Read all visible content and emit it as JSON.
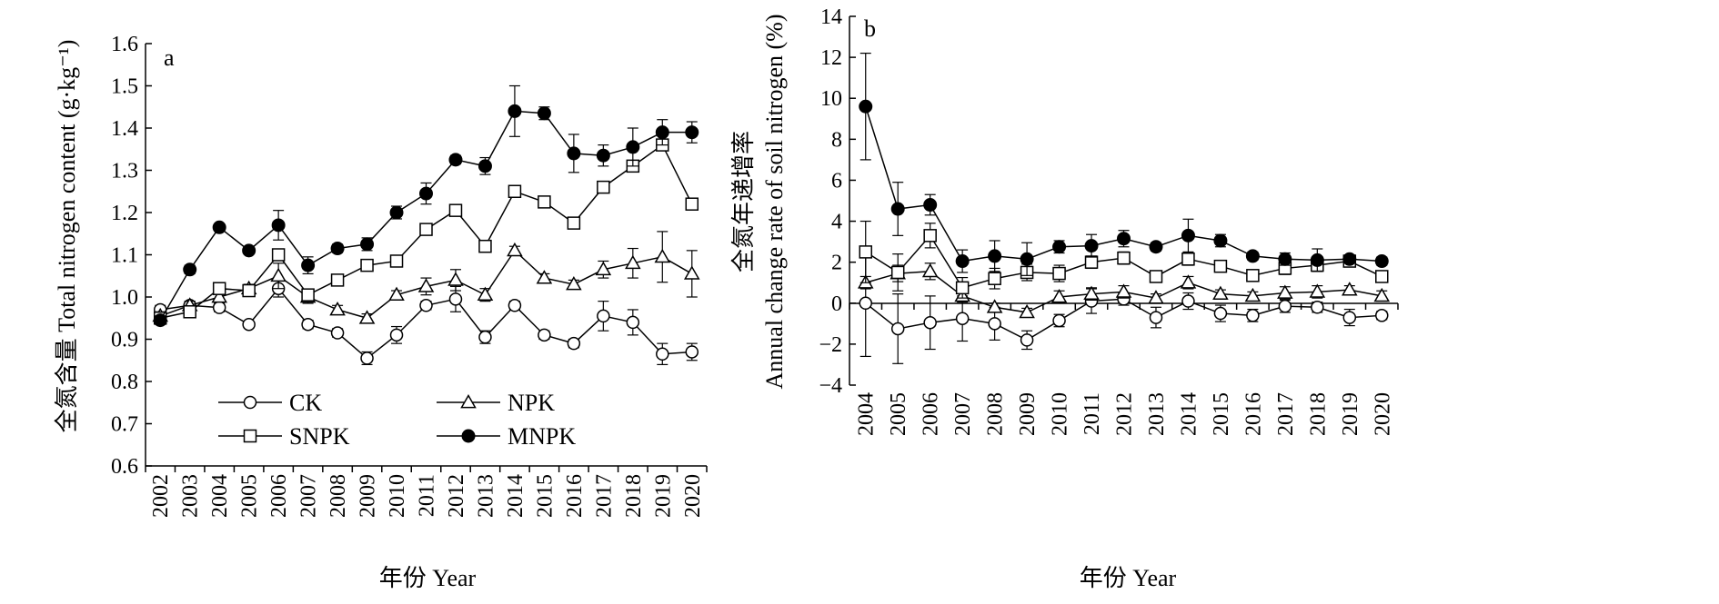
{
  "chart_data": [
    {
      "type": "line",
      "panel_label": "a",
      "title": "",
      "xlabel": "年份 Year",
      "ylabel": "全氮含量 Total nitrogen content (g·kg⁻¹)",
      "x": [
        "2002",
        "2003",
        "2004",
        "2005",
        "2006",
        "2007",
        "2008",
        "2009",
        "2010",
        "2011",
        "2012",
        "2013",
        "2014",
        "2015",
        "2016",
        "2017",
        "2018",
        "2019",
        "2020"
      ],
      "ylim": [
        0.6,
        1.6
      ],
      "yticks": [
        "0.6",
        "0.7",
        "0.8",
        "0.9",
        "1.0",
        "1.1",
        "1.2",
        "1.3",
        "1.4",
        "1.5",
        "1.6"
      ],
      "grid": false,
      "legend": {
        "placement": "bottom-left",
        "entries": [
          "CK",
          "NPK",
          "SNPK",
          "MNPK"
        ]
      },
      "series": [
        {
          "name": "CK",
          "marker": "open-circle",
          "values": [
            0.97,
            0.98,
            0.975,
            0.935,
            1.02,
            0.935,
            0.915,
            0.855,
            0.91,
            0.98,
            0.995,
            0.905,
            0.98,
            0.91,
            0.89,
            0.955,
            0.94,
            0.865,
            0.87
          ],
          "errors": [
            0.01,
            0.01,
            0.01,
            0.005,
            0.02,
            0.01,
            0.01,
            0.015,
            0.02,
            0.01,
            0.03,
            0.015,
            0.01,
            0.01,
            0.01,
            0.035,
            0.03,
            0.025,
            0.02
          ]
        },
        {
          "name": "NPK",
          "marker": "open-triangle",
          "values": [
            0.955,
            0.98,
            1.0,
            1.02,
            1.05,
            1.0,
            0.97,
            0.95,
            1.005,
            1.025,
            1.04,
            1.005,
            1.11,
            1.045,
            1.03,
            1.065,
            1.08,
            1.095,
            1.055
          ],
          "errors": [
            0.01,
            0.01,
            0.01,
            0.01,
            0.03,
            0.015,
            0.01,
            0.01,
            0.01,
            0.02,
            0.025,
            0.015,
            0.01,
            0.01,
            0.01,
            0.02,
            0.035,
            0.06,
            0.055
          ]
        },
        {
          "name": "SNPK",
          "marker": "open-square",
          "values": [
            0.95,
            0.965,
            1.02,
            1.015,
            1.1,
            1.005,
            1.04,
            1.075,
            1.085,
            1.16,
            1.205,
            1.12,
            1.25,
            1.225,
            1.175,
            1.26,
            1.31,
            1.36,
            1.22
          ]
        },
        {
          "name": "MNPK",
          "marker": "filled-circle",
          "values": [
            0.945,
            1.065,
            1.165,
            1.11,
            1.17,
            1.075,
            1.115,
            1.125,
            1.2,
            1.245,
            1.325,
            1.31,
            1.44,
            1.435,
            1.34,
            1.335,
            1.355,
            1.39,
            1.39
          ],
          "errors": [
            0.01,
            0.01,
            0.005,
            0.005,
            0.035,
            0.02,
            0.01,
            0.015,
            0.015,
            0.025,
            0.01,
            0.02,
            0.06,
            0.015,
            0.045,
            0.025,
            0.045,
            0.03,
            0.025
          ]
        }
      ]
    },
    {
      "type": "line",
      "panel_label": "b",
      "title": "",
      "xlabel": "年份 Year",
      "ylabel_line1": "全氮年递增率",
      "ylabel_line2": "Annual change rate of soil nitrogen (%)",
      "x": [
        "2004",
        "2005",
        "2006",
        "2007",
        "2008",
        "2009",
        "2010",
        "2011",
        "2012",
        "2013",
        "2014",
        "2015",
        "2016",
        "2017",
        "2018",
        "2019",
        "2020"
      ],
      "ylim": [
        -4,
        14
      ],
      "yticks": [
        "−4",
        "−2",
        "0",
        "2",
        "4",
        "6",
        "8",
        "10",
        "12",
        "14"
      ],
      "grid": false,
      "series": [
        {
          "name": "CK",
          "marker": "open-circle",
          "values": [
            0.0,
            -1.25,
            -0.95,
            -0.75,
            -1.0,
            -1.8,
            -0.85,
            0.1,
            0.2,
            -0.7,
            0.1,
            -0.5,
            -0.6,
            -0.15,
            -0.2,
            -0.7,
            -0.6
          ],
          "errors": [
            2.6,
            1.7,
            1.3,
            1.1,
            0.8,
            0.45,
            0.3,
            0.6,
            0.3,
            0.5,
            0.4,
            0.4,
            0.3,
            0.3,
            0.25,
            0.4,
            0.2
          ]
        },
        {
          "name": "NPK",
          "marker": "open-triangle",
          "values": [
            1.0,
            1.45,
            1.55,
            0.35,
            -0.2,
            -0.45,
            0.3,
            0.45,
            0.55,
            0.25,
            1.0,
            0.45,
            0.35,
            0.5,
            0.55,
            0.65,
            0.35
          ],
          "errors": [
            0.3,
            0.4,
            0.4,
            0.3,
            0.2,
            0.2,
            0.3,
            0.3,
            0.3,
            0.2,
            0.3,
            0.2,
            0.2,
            0.3,
            0.3,
            0.2,
            0.25
          ]
        },
        {
          "name": "SNPK",
          "marker": "open-square",
          "values": [
            2.5,
            1.5,
            3.3,
            0.75,
            1.2,
            1.5,
            1.45,
            2.0,
            2.2,
            1.3,
            2.15,
            1.8,
            1.35,
            1.7,
            1.85,
            2.05,
            1.3
          ],
          "errors": [
            1.5,
            0.9,
            0.6,
            0.5,
            0.5,
            0.4,
            0.4,
            0.3,
            0.3,
            0.2,
            0.3,
            0.2,
            0.2,
            0.3,
            0.3,
            0.2,
            0.2
          ]
        },
        {
          "name": "MNPK",
          "marker": "filled-circle",
          "values": [
            9.6,
            4.6,
            4.8,
            2.05,
            2.3,
            2.15,
            2.75,
            2.8,
            3.15,
            2.75,
            3.3,
            3.05,
            2.3,
            2.15,
            2.1,
            2.15,
            2.05
          ],
          "errors": [
            2.6,
            1.3,
            0.5,
            0.55,
            0.75,
            0.8,
            0.3,
            0.55,
            0.4,
            0.2,
            0.8,
            0.3,
            0.2,
            0.3,
            0.55,
            0.2,
            0.2
          ]
        }
      ]
    }
  ]
}
